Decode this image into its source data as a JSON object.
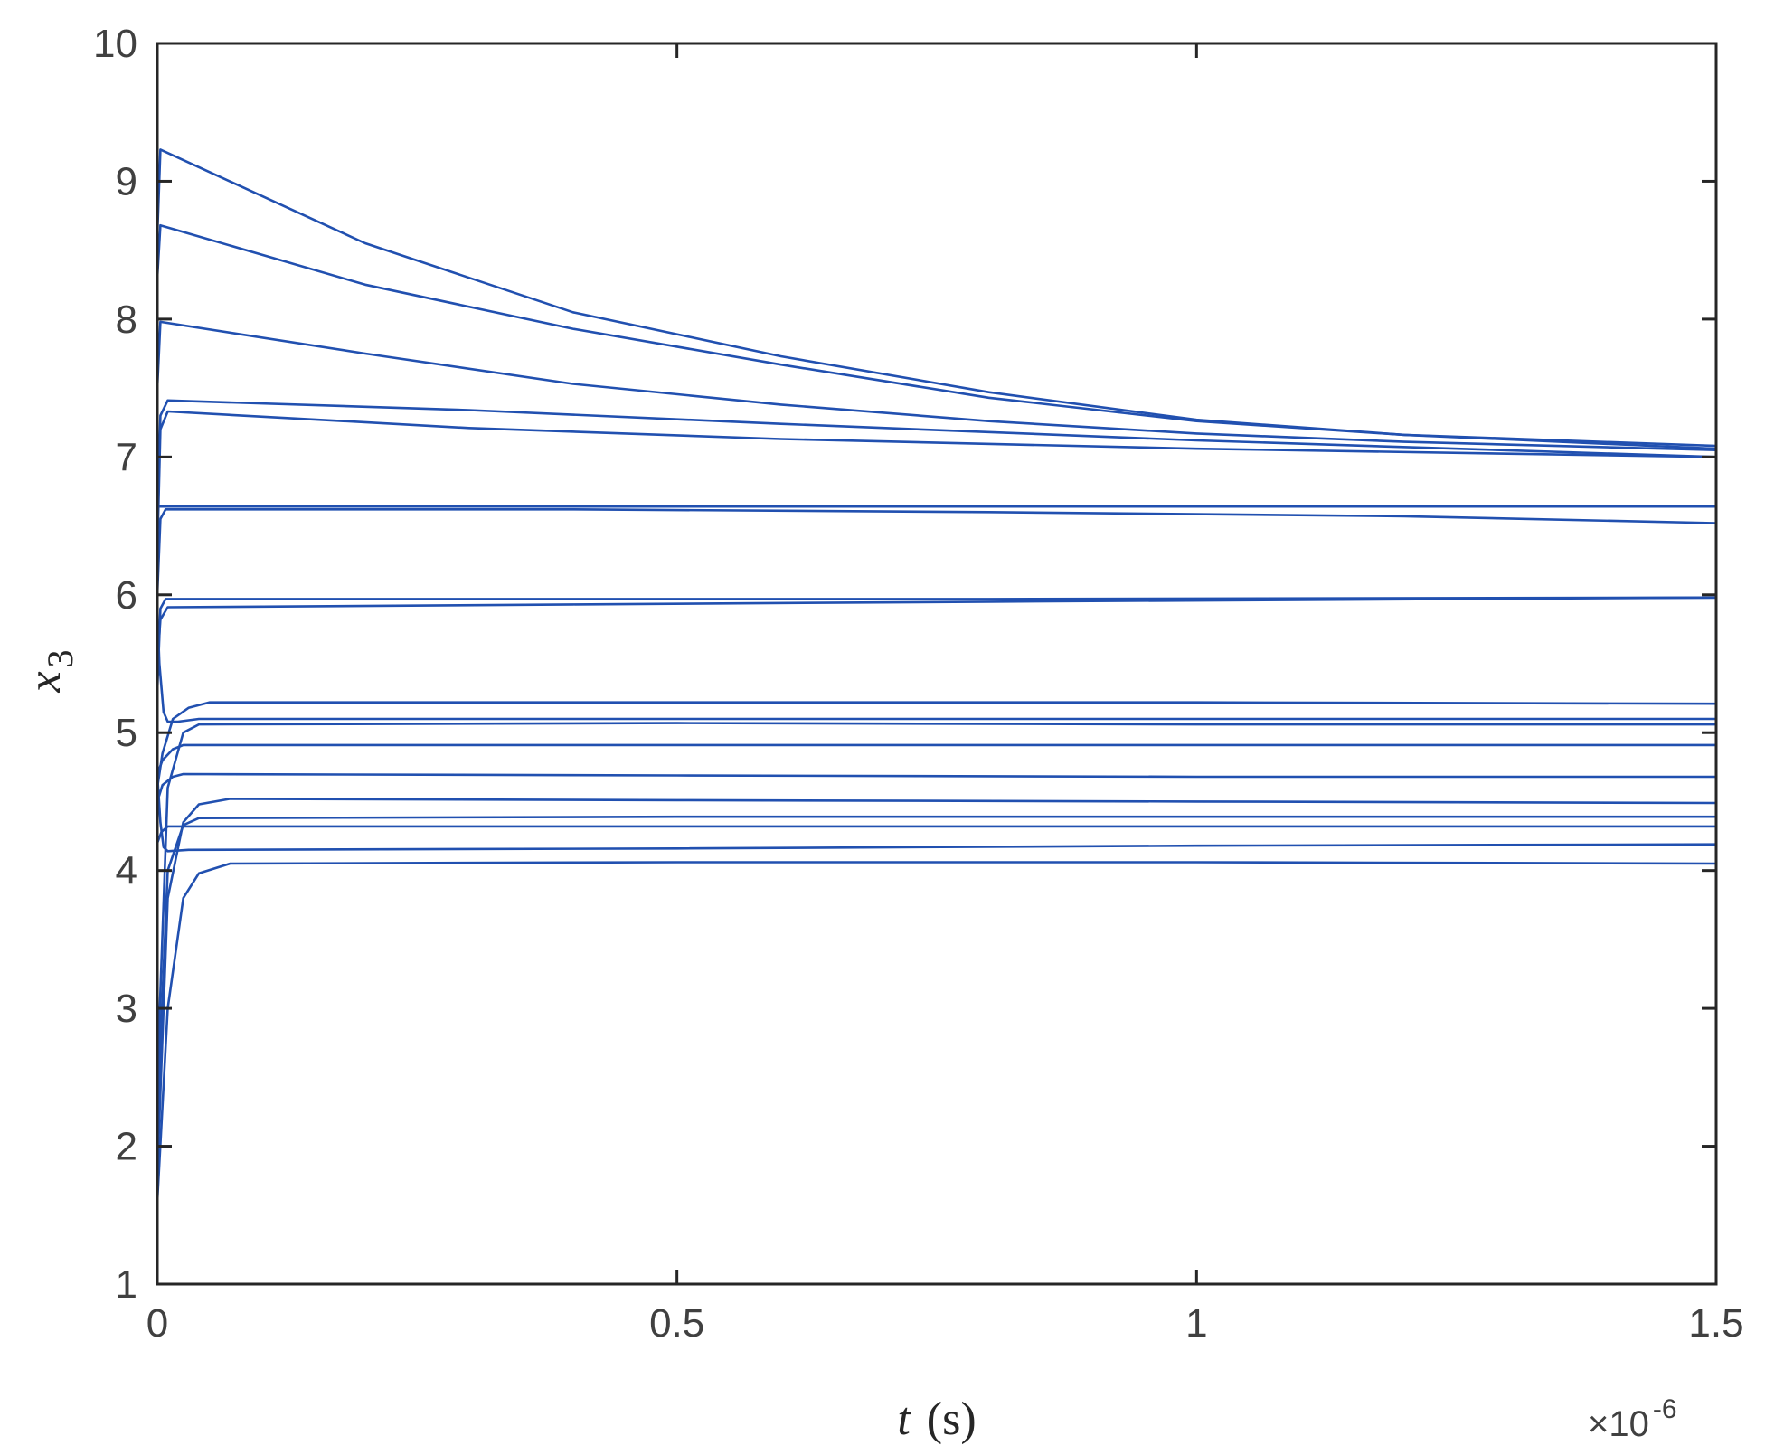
{
  "chart_data": {
    "type": "line",
    "xlabel": {
      "var": "t",
      "unit": "(s)"
    },
    "ylabel": {
      "var": "x",
      "sub": "3"
    },
    "x_multiplier": {
      "prefix": "×10",
      "exp": "-6"
    },
    "xlim": [
      0,
      1.5
    ],
    "ylim": [
      1,
      10
    ],
    "xticks": [
      "0",
      "0.5",
      "1",
      "1.5"
    ],
    "yticks": [
      "1",
      "2",
      "3",
      "4",
      "5",
      "6",
      "7",
      "8",
      "9",
      "10"
    ],
    "grid": false,
    "line_color": "#2150b0",
    "series": [
      {
        "x": [
          0,
          0.003,
          0.2,
          0.4,
          0.6,
          0.8,
          1.0,
          1.2,
          1.5
        ],
        "y": [
          8.6,
          9.23,
          8.55,
          8.05,
          7.73,
          7.47,
          7.27,
          7.16,
          7.08
        ]
      },
      {
        "x": [
          0,
          0.003,
          0.2,
          0.4,
          0.6,
          0.8,
          1.0,
          1.2,
          1.5
        ],
        "y": [
          8.3,
          8.68,
          8.25,
          7.93,
          7.67,
          7.43,
          7.26,
          7.16,
          7.06
        ]
      },
      {
        "x": [
          0,
          0.003,
          0.2,
          0.4,
          0.6,
          0.8,
          1.0,
          1.2,
          1.5
        ],
        "y": [
          7.5,
          7.98,
          7.75,
          7.53,
          7.38,
          7.26,
          7.17,
          7.11,
          7.05
        ]
      },
      {
        "x": [
          0,
          0.003,
          0.01,
          0.3,
          0.6,
          1.0,
          1.5
        ],
        "y": [
          6.5,
          7.3,
          7.41,
          7.34,
          7.24,
          7.12,
          7.0
        ]
      },
      {
        "x": [
          0,
          0.003,
          0.01,
          0.3,
          0.6,
          1.0,
          1.5
        ],
        "y": [
          6.3,
          7.2,
          7.33,
          7.21,
          7.13,
          7.06,
          7.0
        ]
      },
      {
        "x": [
          0,
          0.005,
          0.5,
          1.0,
          1.5
        ],
        "y": [
          6.64,
          6.64,
          6.64,
          6.64,
          6.64
        ]
      },
      {
        "x": [
          0,
          0.003,
          0.008,
          0.4,
          0.8,
          1.2,
          1.5
        ],
        "y": [
          6.0,
          6.55,
          6.62,
          6.62,
          6.6,
          6.57,
          6.52
        ]
      },
      {
        "x": [
          0,
          0.003,
          0.008,
          0.4,
          0.8,
          1.5
        ],
        "y": [
          5.3,
          5.9,
          5.97,
          5.97,
          5.97,
          5.98
        ]
      },
      {
        "x": [
          0,
          0.003,
          0.01,
          0.4,
          0.8,
          1.5
        ],
        "y": [
          5.5,
          5.82,
          5.91,
          5.93,
          5.95,
          5.98
        ]
      },
      {
        "x": [
          0,
          0.002,
          0.006,
          0.01,
          0.02,
          0.04,
          0.06,
          0.5,
          1.0,
          1.5
        ],
        "y": [
          5.9,
          5.5,
          5.15,
          5.08,
          5.08,
          5.1,
          5.1,
          5.1,
          5.1,
          5.1
        ]
      },
      {
        "x": [
          0,
          0.005,
          0.015,
          0.03,
          0.05,
          0.5,
          1.0,
          1.5
        ],
        "y": [
          4.6,
          4.85,
          5.1,
          5.18,
          5.22,
          5.22,
          5.22,
          5.21
        ]
      },
      {
        "x": [
          0,
          0.01,
          0.025,
          0.04,
          0.5,
          1.0,
          1.5
        ],
        "y": [
          2.5,
          4.6,
          5.0,
          5.06,
          5.07,
          5.06,
          5.06
        ]
      },
      {
        "x": [
          0,
          0.005,
          0.015,
          0.025,
          0.5,
          1.0,
          1.5
        ],
        "y": [
          4.7,
          4.8,
          4.88,
          4.91,
          4.91,
          4.91,
          4.91
        ]
      },
      {
        "x": [
          0,
          0.005,
          0.015,
          0.025,
          0.5,
          1.0,
          1.5
        ],
        "y": [
          4.5,
          4.62,
          4.68,
          4.7,
          4.69,
          4.68,
          4.68
        ]
      },
      {
        "x": [
          0,
          0.01,
          0.025,
          0.04,
          0.07,
          0.5,
          1.0,
          1.5
        ],
        "y": [
          1.8,
          3.8,
          4.35,
          4.48,
          4.52,
          4.51,
          4.5,
          4.49
        ]
      },
      {
        "x": [
          0,
          0.01,
          0.025,
          0.04,
          0.5,
          1.0,
          1.5
        ],
        "y": [
          2.2,
          4.0,
          4.33,
          4.38,
          4.39,
          4.39,
          4.39
        ]
      },
      {
        "x": [
          0,
          0.004,
          0.01,
          0.5,
          1.0,
          1.5
        ],
        "y": [
          4.2,
          4.28,
          4.32,
          4.32,
          4.32,
          4.32
        ]
      },
      {
        "x": [
          0,
          0.003,
          0.006,
          0.01,
          0.03,
          0.5,
          1.0,
          1.5
        ],
        "y": [
          4.7,
          4.35,
          4.17,
          4.14,
          4.15,
          4.16,
          4.18,
          4.19
        ]
      },
      {
        "x": [
          0,
          0.01,
          0.025,
          0.04,
          0.07,
          0.5,
          1.0,
          1.5
        ],
        "y": [
          1.6,
          3.0,
          3.8,
          3.98,
          4.05,
          4.06,
          4.06,
          4.05
        ]
      }
    ]
  }
}
